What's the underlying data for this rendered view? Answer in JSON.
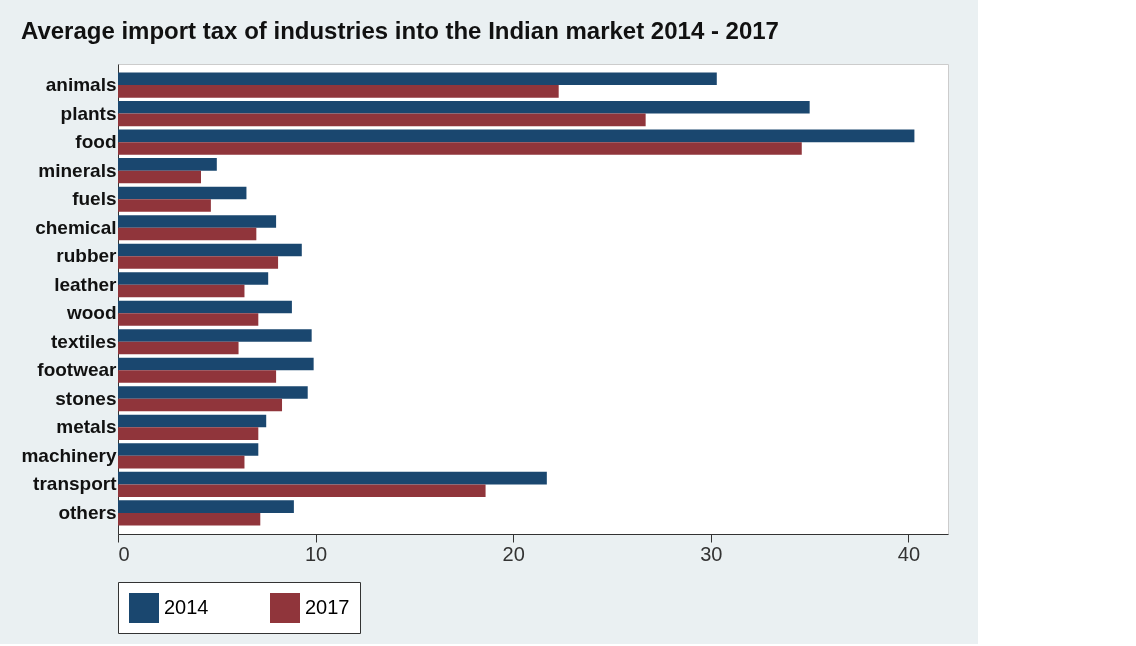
{
  "chart_data": {
    "type": "bar",
    "orientation": "horizontal",
    "title": "Average import tax of industries into the Indian market 2014 - 2017",
    "categories": [
      "animals",
      "plants",
      "food",
      "minerals",
      "fuels",
      "chemical",
      "rubber",
      "leather",
      "wood",
      "textiles",
      "footwear",
      "stones",
      "metals",
      "machinery",
      "transport",
      "others"
    ],
    "series": [
      {
        "name": "2014",
        "color": "#1a476f",
        "values": [
          30.3,
          35.0,
          40.3,
          5.0,
          6.5,
          8.0,
          9.3,
          7.6,
          8.8,
          9.8,
          9.9,
          9.6,
          7.5,
          7.1,
          21.7,
          8.9
        ]
      },
      {
        "name": "2017",
        "color": "#90353b",
        "values": [
          22.3,
          26.7,
          34.6,
          4.2,
          4.7,
          7.0,
          8.1,
          6.4,
          7.1,
          6.1,
          8.0,
          8.3,
          7.1,
          6.4,
          18.6,
          7.2
        ]
      }
    ],
    "xlim": [
      0,
      42
    ],
    "xticks": [
      0,
      10,
      20,
      30,
      40
    ],
    "grid": false,
    "legend": "bottom"
  }
}
